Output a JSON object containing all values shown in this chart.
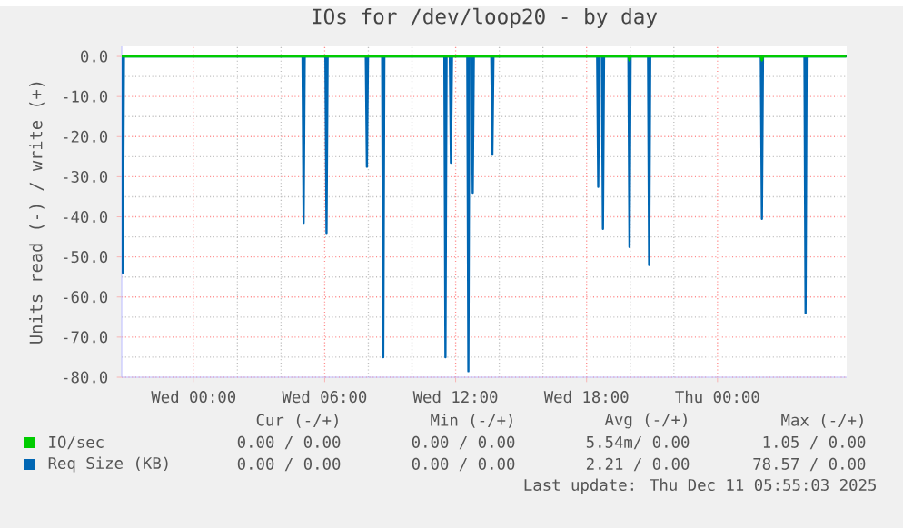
{
  "chart_data": {
    "type": "line",
    "title": "IOs for /dev/loop20 - by day",
    "ylabel": "Units read (-) / write (+)",
    "xlim": [
      "2025-12-09T20:42",
      "2025-12-11T05:55"
    ],
    "ylim": [
      -80,
      2.5
    ],
    "xticks": [
      {
        "value": "2025-12-10T00:00",
        "label": "Wed 00:00"
      },
      {
        "value": "2025-12-10T06:00",
        "label": "Wed 06:00"
      },
      {
        "value": "2025-12-10T12:00",
        "label": "Wed 12:00"
      },
      {
        "value": "2025-12-10T18:00",
        "label": "Wed 18:00"
      },
      {
        "value": "2025-12-11T00:00",
        "label": "Thu 00:00"
      }
    ],
    "yticks": [
      {
        "value": 0,
        "label": "0.0"
      },
      {
        "value": -10,
        "label": "-10.0"
      },
      {
        "value": -20,
        "label": "-20.0"
      },
      {
        "value": -30,
        "label": "-30.0"
      },
      {
        "value": -40,
        "label": "-40.0"
      },
      {
        "value": -50,
        "label": "-50.0"
      },
      {
        "value": -60,
        "label": "-60.0"
      },
      {
        "value": -70,
        "label": "-70.0"
      },
      {
        "value": -80,
        "label": "-80.0"
      }
    ],
    "grid": true,
    "legend": "bottom",
    "marker": "none",
    "line_style": "solid",
    "series": [
      {
        "name": "IO/sec",
        "color": "#00cc00",
        "x": [
          "2025-12-09T20:42",
          "2025-12-10T19:55",
          "2025-12-10T19:58",
          "2025-12-10T20:01",
          "2025-12-11T01:59",
          "2025-12-11T02:02",
          "2025-12-11T02:05",
          "2025-12-11T05:54"
        ],
        "values": [
          0,
          0,
          -1,
          0,
          0,
          -1,
          0,
          0
        ]
      },
      {
        "name": "Req Size (KB)",
        "color": "#0066b3",
        "x": [
          "2025-12-09T20:42",
          "2025-12-09T20:45",
          "2025-12-09T20:48",
          "2025-12-10T04:59",
          "2025-12-10T05:02",
          "2025-12-10T05:05",
          "2025-12-10T06:02",
          "2025-12-10T06:05",
          "2025-12-10T06:08",
          "2025-12-10T07:53",
          "2025-12-10T07:56",
          "2025-12-10T07:59",
          "2025-12-10T08:38",
          "2025-12-10T08:41",
          "2025-12-10T08:44",
          "2025-12-10T11:29",
          "2025-12-10T11:32",
          "2025-12-10T11:35",
          "2025-12-10T11:44",
          "2025-12-10T11:47",
          "2025-12-10T11:50",
          "2025-12-10T12:32",
          "2025-12-10T12:35",
          "2025-12-10T12:38",
          "2025-12-10T12:44",
          "2025-12-10T12:47",
          "2025-12-10T12:50",
          "2025-12-10T13:38",
          "2025-12-10T13:41",
          "2025-12-10T13:44",
          "2025-12-10T18:29",
          "2025-12-10T18:32",
          "2025-12-10T18:35",
          "2025-12-10T18:42",
          "2025-12-10T18:45",
          "2025-12-10T18:48",
          "2025-12-10T19:55",
          "2025-12-10T19:58",
          "2025-12-10T20:01",
          "2025-12-10T20:49",
          "2025-12-10T20:52",
          "2025-12-10T20:55",
          "2025-12-11T01:59",
          "2025-12-11T02:02",
          "2025-12-11T02:05",
          "2025-12-11T03:59",
          "2025-12-11T04:02",
          "2025-12-11T04:05",
          "2025-12-11T05:54"
        ],
        "values": [
          0,
          -54,
          0,
          0,
          -41.5,
          0,
          0,
          -44,
          0,
          0,
          -27.5,
          0,
          0,
          -75,
          0,
          0,
          -75,
          0,
          0,
          -26.5,
          0,
          0,
          -78.5,
          0,
          0,
          -34,
          0,
          0,
          -24.5,
          0,
          0,
          -32.5,
          0,
          0,
          -43,
          0,
          0,
          -47.5,
          0,
          0,
          -52,
          0,
          0,
          -40.5,
          0,
          0,
          -64,
          0,
          0
        ]
      }
    ],
    "annotations": [
      "Cur (-/+)",
      "Min (-/+)",
      "Avg (-/+)",
      "Max (-/+)",
      "0.00 / 0.00",
      "0.00 / 0.00",
      "5.54m/ 0.00",
      "1.05 / 0.00",
      "0.00 / 0.00",
      "0.00 / 0.00",
      "2.21 / 0.00",
      "78.57 / 0.00",
      "Last update: Thu Dec 11 05:55:03 2025"
    ]
  }
}
